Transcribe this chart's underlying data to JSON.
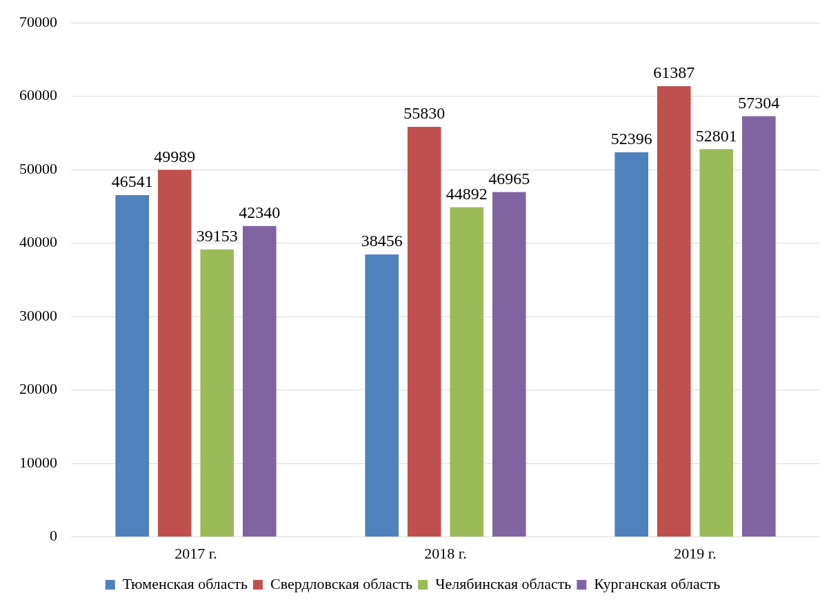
{
  "chart_data": {
    "type": "bar",
    "categories": [
      "2017 г.",
      "2018 г.",
      "2019 г."
    ],
    "series": [
      {
        "name": "Тюменская область",
        "color": "#4f81bd",
        "values": [
          46541,
          38456,
          52396
        ]
      },
      {
        "name": "Свердловская область",
        "color": "#c0504d",
        "values": [
          49989,
          55830,
          61387
        ]
      },
      {
        "name": "Челябинская область",
        "color": "#9bbb59",
        "values": [
          39153,
          44892,
          52801
        ]
      },
      {
        "name": "Курганская область",
        "color": "#8064a2",
        "values": [
          42340,
          46965,
          57304
        ]
      }
    ],
    "ylim": [
      0,
      70000
    ],
    "yticks": [
      0,
      10000,
      20000,
      30000,
      40000,
      50000,
      60000,
      70000
    ],
    "grid": "y",
    "legend": "bottom",
    "data_labels": true
  }
}
